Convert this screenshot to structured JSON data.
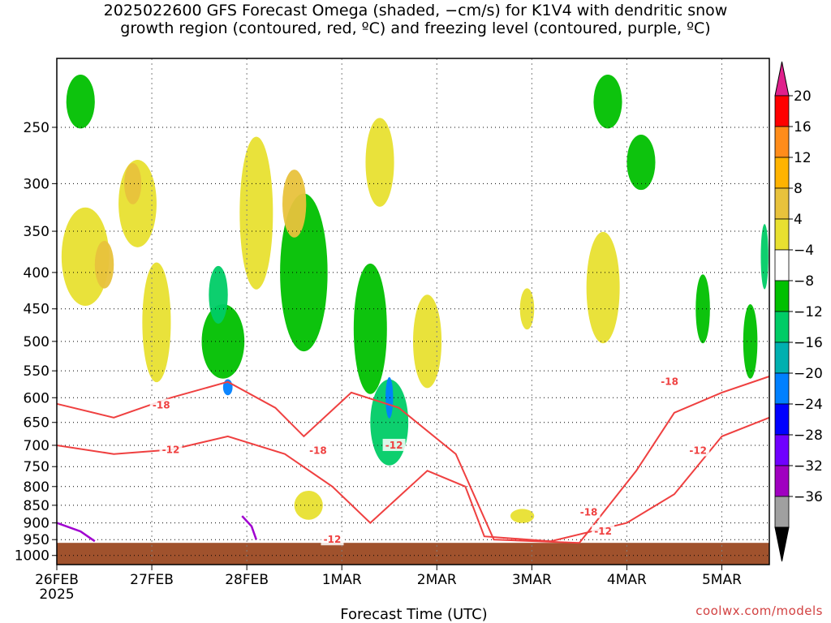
{
  "title": {
    "line1": "2025022600 GFS Forecast Omega (shaded, −cm/s) for K1V4 with dendritic snow",
    "line2": "growth region (contoured, red, ºC) and freezing level (contoured, purple, ºC)"
  },
  "credit": "coolwx.com/models",
  "chart_data": {
    "type": "heatmap",
    "xlabel": "Forecast Time (UTC)",
    "ylabel": "",
    "x_ticks": [
      {
        "label": "26FEB",
        "sub": "2025",
        "day": 0
      },
      {
        "label": "27FEB",
        "day": 1
      },
      {
        "label": "28FEB",
        "day": 2
      },
      {
        "label": "1MAR",
        "day": 3
      },
      {
        "label": "2MAR",
        "day": 4
      },
      {
        "label": "3MAR",
        "day": 5
      },
      {
        "label": "4MAR",
        "day": 6
      },
      {
        "label": "5MAR",
        "day": 7
      }
    ],
    "xlim_days": [
      0,
      7.5
    ],
    "y_ticks": [
      250,
      300,
      350,
      400,
      450,
      500,
      550,
      600,
      650,
      700,
      750,
      800,
      850,
      900,
      950,
      1000
    ],
    "ylim_hpa": [
      200,
      1030
    ],
    "y_scale": "log-pressure",
    "grid": true,
    "colorbar": {
      "labels": [
        "20",
        "16",
        "12",
        "8",
        "4",
        "−4",
        "−8",
        "−12",
        "−16",
        "−20",
        "−24",
        "−28",
        "−32",
        "−36"
      ],
      "colors": [
        "#ff0000",
        "#ff8c1a",
        "#ffb300",
        "#e8c23c",
        "#e8e030",
        "#ffffff",
        "#00c000",
        "#00cc66",
        "#00b0b0",
        "#0080ff",
        "#0000ff",
        "#7000ff",
        "#a000c0",
        "#a0a0a0"
      ],
      "top_color": "#e0208c",
      "bottom_color": "#000000"
    },
    "omega_regions": [
      {
        "day": 0.3,
        "hpa": 380,
        "w": 0.5,
        "hh": 120,
        "color": "#e8e030"
      },
      {
        "day": 0.5,
        "hpa": 390,
        "w": 0.2,
        "hh": 60,
        "color": "#e8c23c"
      },
      {
        "day": 0.85,
        "hpa": 320,
        "w": 0.4,
        "hh": 90,
        "color": "#e8e030"
      },
      {
        "day": 0.8,
        "hpa": 300,
        "w": 0.18,
        "hh": 40,
        "color": "#e8c23c"
      },
      {
        "day": 0.25,
        "hpa": 230,
        "w": 0.3,
        "hh": 40,
        "color": "#00c000"
      },
      {
        "day": 1.05,
        "hpa": 470,
        "w": 0.3,
        "hh": 180,
        "color": "#e8e030"
      },
      {
        "day": 1.75,
        "hpa": 500,
        "w": 0.45,
        "hh": 120,
        "color": "#00c000"
      },
      {
        "day": 1.7,
        "hpa": 430,
        "w": 0.2,
        "hh": 80,
        "color": "#00cc66"
      },
      {
        "day": 1.8,
        "hpa": 580,
        "w": 0.1,
        "hh": 30,
        "color": "#0080ff"
      },
      {
        "day": 2.1,
        "hpa": 330,
        "w": 0.35,
        "hh": 160,
        "color": "#e8e030"
      },
      {
        "day": 2.6,
        "hpa": 400,
        "w": 0.5,
        "hh": 200,
        "color": "#00c000"
      },
      {
        "day": 2.5,
        "hpa": 320,
        "w": 0.25,
        "hh": 70,
        "color": "#e8c23c"
      },
      {
        "day": 2.65,
        "hpa": 850,
        "w": 0.3,
        "hh": 80,
        "color": "#e8e030"
      },
      {
        "day": 3.3,
        "hpa": 480,
        "w": 0.35,
        "hh": 200,
        "color": "#00c000"
      },
      {
        "day": 3.5,
        "hpa": 650,
        "w": 0.4,
        "hh": 180,
        "color": "#00cc66"
      },
      {
        "day": 3.5,
        "hpa": 600,
        "w": 0.08,
        "hh": 80,
        "color": "#0080ff"
      },
      {
        "day": 3.4,
        "hpa": 280,
        "w": 0.3,
        "hh": 80,
        "color": "#e8e030"
      },
      {
        "day": 3.9,
        "hpa": 500,
        "w": 0.3,
        "hh": 150,
        "color": "#e8e030"
      },
      {
        "day": 4.9,
        "hpa": 880,
        "w": 0.25,
        "hh": 40,
        "color": "#e8e030"
      },
      {
        "day": 4.95,
        "hpa": 450,
        "w": 0.15,
        "hh": 60,
        "color": "#e8e030"
      },
      {
        "day": 5.75,
        "hpa": 420,
        "w": 0.35,
        "hh": 150,
        "color": "#e8e030"
      },
      {
        "day": 5.8,
        "hpa": 230,
        "w": 0.3,
        "hh": 40,
        "color": "#00c000"
      },
      {
        "day": 6.15,
        "hpa": 280,
        "w": 0.3,
        "hh": 50,
        "color": "#00c000"
      },
      {
        "day": 6.8,
        "hpa": 450,
        "w": 0.15,
        "hh": 100,
        "color": "#00c000"
      },
      {
        "day": 7.3,
        "hpa": 500,
        "w": 0.15,
        "hh": 120,
        "color": "#00c000"
      },
      {
        "day": 7.45,
        "hpa": 380,
        "w": 0.08,
        "hh": 80,
        "color": "#00cc66"
      }
    ],
    "contours_red": [
      {
        "level": "-18",
        "points": [
          [
            0,
            612
          ],
          [
            0.6,
            640
          ],
          [
            1.2,
            600
          ],
          [
            1.8,
            570
          ],
          [
            2.3,
            620
          ],
          [
            2.6,
            680
          ],
          [
            3.1,
            590
          ],
          [
            3.6,
            620
          ],
          [
            4.2,
            720
          ],
          [
            4.6,
            950
          ],
          [
            5.5,
            960
          ],
          [
            6.1,
            760
          ],
          [
            6.5,
            630
          ],
          [
            7.0,
            590
          ],
          [
            7.5,
            560
          ]
        ]
      },
      {
        "level": "-12",
        "points": [
          [
            0,
            700
          ],
          [
            0.6,
            720
          ],
          [
            1.2,
            710
          ],
          [
            1.8,
            680
          ],
          [
            2.4,
            720
          ],
          [
            2.9,
            800
          ],
          [
            3.3,
            900
          ],
          [
            3.9,
            760
          ],
          [
            4.3,
            800
          ],
          [
            4.5,
            940
          ],
          [
            5.2,
            955
          ],
          [
            6.0,
            900
          ],
          [
            6.5,
            820
          ],
          [
            7.0,
            680
          ],
          [
            7.5,
            640
          ]
        ]
      }
    ],
    "red_labels": [
      {
        "text": "-18",
        "day": 1.1,
        "hpa": 615
      },
      {
        "text": "-12",
        "day": 1.2,
        "hpa": 710
      },
      {
        "text": "-18",
        "day": 2.75,
        "hpa": 712
      },
      {
        "text": "-12",
        "day": 3.55,
        "hpa": 700
      },
      {
        "text": "-12",
        "day": 2.9,
        "hpa": 950
      },
      {
        "text": "-18",
        "day": 5.6,
        "hpa": 870
      },
      {
        "text": "-12",
        "day": 5.75,
        "hpa": 925
      },
      {
        "text": "-18",
        "day": 6.45,
        "hpa": 570
      },
      {
        "text": "-12",
        "day": 6.75,
        "hpa": 712
      }
    ],
    "contours_purple": [
      {
        "points": [
          [
            0,
            900
          ],
          [
            0.25,
            925
          ],
          [
            0.4,
            955
          ]
        ]
      },
      {
        "points": [
          [
            1.95,
            880
          ],
          [
            2.05,
            910
          ],
          [
            2.1,
            950
          ]
        ]
      }
    ],
    "terrain_color": "#a0522d"
  }
}
